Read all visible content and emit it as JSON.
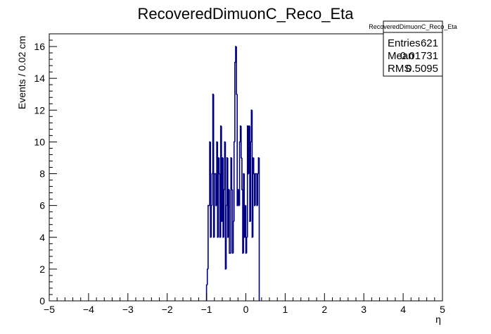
{
  "chart_data": {
    "type": "histogram",
    "title": "RecoveredDimuonC_Reco_Eta",
    "xlabel": "η",
    "ylabel": "Events / 0.02 cm",
    "xlim": [
      -5,
      5
    ],
    "ylim": [
      0,
      16.8
    ],
    "bin_width": 0.02,
    "line_color": "#000080",
    "x_ticks": [
      -5,
      -4,
      -3,
      -2,
      -1,
      0,
      1,
      2,
      3,
      4,
      5
    ],
    "x_tick_labels": [
      "−5",
      "−4",
      "−3",
      "−2",
      "−1",
      "0",
      "1",
      "2",
      "3",
      "4",
      "5"
    ],
    "y_ticks": [
      0,
      2,
      4,
      6,
      8,
      10,
      12,
      14,
      16
    ],
    "y_tick_labels": [
      "0",
      "2",
      "4",
      "6",
      "8",
      "10",
      "12",
      "14",
      "16"
    ],
    "bin_start": -1.0,
    "values": [
      1,
      2,
      6,
      6,
      10,
      4,
      6,
      8,
      13,
      4,
      8,
      8,
      6,
      10,
      4,
      9,
      8,
      4,
      11,
      5,
      9,
      4,
      7,
      10,
      2,
      6,
      9,
      4,
      7,
      3,
      3,
      9,
      7,
      3,
      5,
      10,
      15,
      16,
      13,
      6,
      7,
      6,
      10,
      11,
      9,
      7,
      3,
      8,
      4,
      6,
      3,
      4,
      11,
      8,
      11,
      5,
      10,
      12,
      4,
      9,
      8,
      6,
      8,
      8,
      6,
      8,
      9
    ]
  },
  "stats_box": {
    "title": "RecoveredDimuonC_Reco_Eta",
    "rows": [
      {
        "label": "Entries",
        "value": "621"
      },
      {
        "label": "Mean",
        "value": "0.01731"
      },
      {
        "label": "RMS",
        "value": "0.5095"
      }
    ]
  }
}
